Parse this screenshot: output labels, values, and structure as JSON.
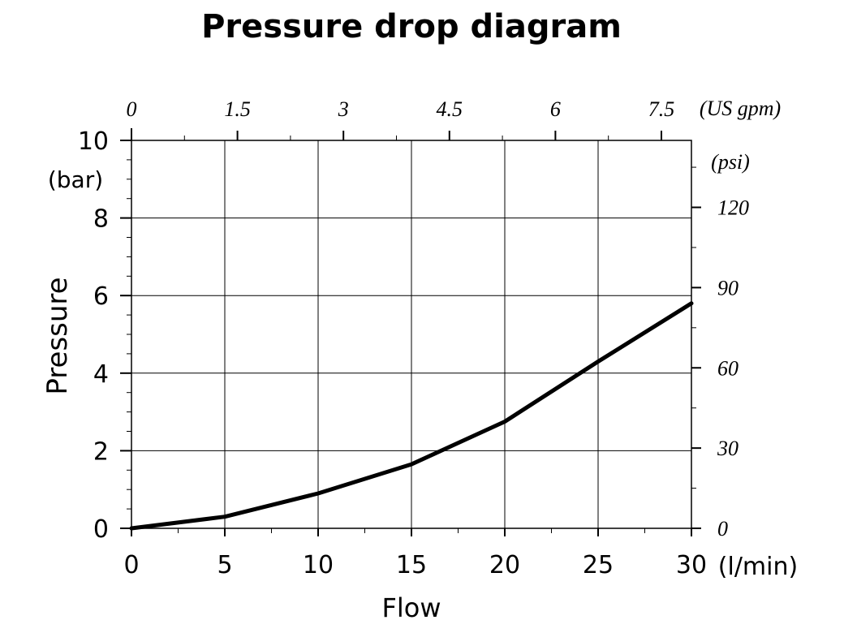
{
  "chart_data": {
    "type": "line",
    "title": "Pressure drop diagram",
    "xlabel": "Flow",
    "x_unit": "(l/min)",
    "ylabel": "Pressure",
    "y_unit": "(bar)",
    "xlim": [
      0,
      30
    ],
    "ylim": [
      0,
      10
    ],
    "grid": true,
    "x_ticks": [
      "0",
      "5",
      "10",
      "15",
      "20",
      "25",
      "30"
    ],
    "y_ticks": [
      "0",
      "2",
      "4",
      "6",
      "8",
      "10"
    ],
    "top_axis": {
      "unit": "(US gpm)",
      "ticks": [
        {
          "label": "0",
          "value": 0
        },
        {
          "label": "1.5",
          "value": 1.5
        },
        {
          "label": "3",
          "value": 3
        },
        {
          "label": "4.5",
          "value": 4.5
        },
        {
          "label": "6",
          "value": 6
        },
        {
          "label": "7.5",
          "value": 7.5
        }
      ]
    },
    "right_axis": {
      "unit": "(psi)",
      "ticks": [
        {
          "label": "0",
          "value": 0
        },
        {
          "label": "30",
          "value": 30
        },
        {
          "label": "60",
          "value": 60
        },
        {
          "label": "90",
          "value": 90
        },
        {
          "label": "120",
          "value": 120
        }
      ]
    },
    "series": [
      {
        "x": [
          0,
          5,
          10,
          15,
          20,
          25,
          30
        ],
        "y": [
          0,
          0.3,
          0.9,
          1.65,
          2.75,
          4.3,
          5.8
        ],
        "color": "#000000"
      }
    ]
  }
}
